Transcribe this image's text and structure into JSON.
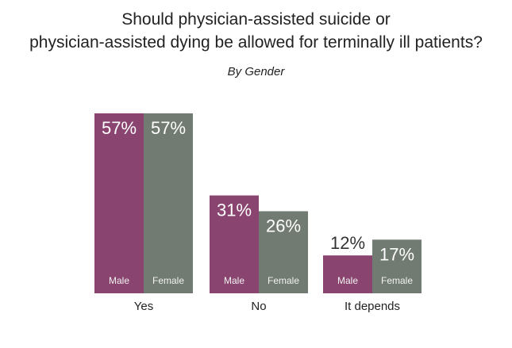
{
  "title_lines": [
    "Should physician-assisted suicide or",
    "physician-assisted dying be allowed for terminally ill patients?"
  ],
  "subtitle": "By Gender",
  "colors": {
    "male": "#8a4470",
    "female": "#727b71",
    "value_on_bar": "#ffffff",
    "value_above_bar": "#333333",
    "text": "#222222"
  },
  "chart_data": {
    "type": "bar",
    "title": "Should physician-assisted suicide or physician-assisted dying be allowed for terminally ill patients?",
    "subtitle": "By Gender",
    "categories": [
      "Yes",
      "No",
      "It depends"
    ],
    "series": [
      {
        "name": "Male",
        "values": [
          57,
          31,
          12
        ],
        "labels": [
          "57%",
          "31%",
          "12%"
        ]
      },
      {
        "name": "Female",
        "values": [
          57,
          26,
          17
        ],
        "labels": [
          "57%",
          "26%",
          "17%"
        ]
      }
    ],
    "ylim": [
      0,
      57
    ],
    "unit": "%",
    "grid": false,
    "legend": "none (series names printed inside bars)"
  }
}
